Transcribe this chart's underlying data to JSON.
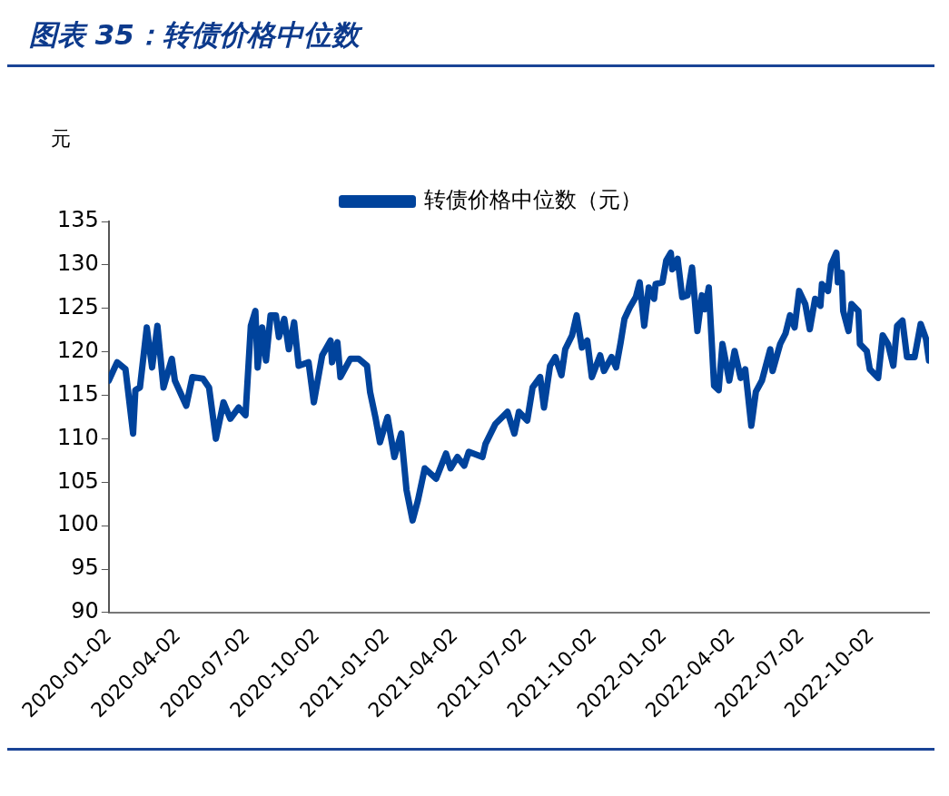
{
  "chart_data": {
    "type": "line",
    "title": "图表 35：转债价格中位数",
    "ylabel": "元",
    "legend": "top",
    "grid": false,
    "marker": "none",
    "line_style": "solid",
    "xlim": [
      "2020-01-02",
      "2022-12-17"
    ],
    "xticks": [
      "2020-01-02",
      "2020-04-02",
      "2020-07-02",
      "2020-10-02",
      "2021-01-02",
      "2021-04-02",
      "2021-07-02",
      "2021-10-02",
      "2022-01-02",
      "2022-04-02",
      "2022-07-02",
      "2022-10-02"
    ],
    "ylim": [
      90,
      135
    ],
    "yticks": [
      90,
      95,
      100,
      105,
      110,
      115,
      120,
      125,
      130,
      135
    ],
    "series": [
      {
        "name": "转债价格中位数（元）",
        "color": "#00439c",
        "x": [
          "2020-01-02",
          "2020-01-13",
          "2020-01-24",
          "2020-02-03",
          "2020-02-06",
          "2020-02-12",
          "2020-02-21",
          "2020-02-28",
          "2020-03-06",
          "2020-03-14",
          "2020-03-25",
          "2020-03-29",
          "2020-04-13",
          "2020-04-21",
          "2020-05-05",
          "2020-05-13",
          "2020-05-22",
          "2020-06-01",
          "2020-06-10",
          "2020-06-21",
          "2020-06-30",
          "2020-07-07",
          "2020-07-13",
          "2020-07-16",
          "2020-07-22",
          "2020-07-27",
          "2020-08-02",
          "2020-08-09",
          "2020-08-13",
          "2020-08-20",
          "2020-08-26",
          "2020-09-02",
          "2020-09-08",
          "2020-09-21",
          "2020-09-28",
          "2020-10-09",
          "2020-10-20",
          "2020-10-22",
          "2020-10-29",
          "2020-11-02",
          "2020-11-15",
          "2020-11-26",
          "2020-12-07",
          "2020-12-11",
          "2020-12-18",
          "2020-12-24",
          "2021-01-03",
          "2021-01-12",
          "2021-01-21",
          "2021-01-28",
          "2021-02-05",
          "2021-02-12",
          "2021-02-21",
          "2021-03-08",
          "2021-03-21",
          "2021-03-27",
          "2021-04-05",
          "2021-04-14",
          "2021-04-20",
          "2021-05-08",
          "2021-05-12",
          "2021-05-25",
          "2021-06-10",
          "2021-06-19",
          "2021-06-25",
          "2021-07-06",
          "2021-07-13",
          "2021-07-23",
          "2021-07-28",
          "2021-08-05",
          "2021-08-12",
          "2021-08-20",
          "2021-08-25",
          "2021-09-03",
          "2021-09-09",
          "2021-09-16",
          "2021-09-23",
          "2021-09-29",
          "2021-10-10",
          "2021-10-15",
          "2021-10-25",
          "2021-10-31",
          "2021-11-06",
          "2021-11-11",
          "2021-11-18",
          "2021-11-26",
          "2021-12-01",
          "2021-12-07",
          "2021-12-13",
          "2021-12-20",
          "2021-12-22",
          "2021-12-31",
          "2022-01-05",
          "2022-01-11",
          "2022-01-13",
          "2022-01-20",
          "2022-01-26",
          "2022-02-02",
          "2022-02-08",
          "2022-02-15",
          "2022-02-21",
          "2022-02-25",
          "2022-03-02",
          "2022-03-09",
          "2022-03-15",
          "2022-03-20",
          "2022-03-29",
          "2022-04-05",
          "2022-04-13",
          "2022-04-19",
          "2022-04-27",
          "2022-05-03",
          "2022-05-11",
          "2022-05-22",
          "2022-05-25",
          "2022-06-04",
          "2022-06-11",
          "2022-06-17",
          "2022-06-23",
          "2022-06-29",
          "2022-07-07",
          "2022-07-13",
          "2022-07-20",
          "2022-07-27",
          "2022-07-29",
          "2022-08-06",
          "2022-08-10",
          "2022-08-17",
          "2022-08-19",
          "2022-08-24",
          "2022-08-26",
          "2022-09-02",
          "2022-09-06",
          "2022-09-15",
          "2022-09-17",
          "2022-09-26",
          "2022-09-30",
          "2022-10-11",
          "2022-10-17",
          "2022-10-24",
          "2022-10-31",
          "2022-11-05",
          "2022-11-12",
          "2022-11-18",
          "2022-11-28",
          "2022-12-06",
          "2022-12-13",
          "2022-12-17"
        ],
        "values": [
          116.7,
          118.8,
          118.0,
          110.6,
          115.6,
          115.9,
          122.8,
          118.2,
          123.0,
          115.9,
          119.2,
          116.7,
          113.8,
          117.1,
          116.9,
          115.9,
          110.0,
          114.2,
          112.3,
          113.6,
          112.7,
          123.0,
          124.7,
          118.2,
          122.8,
          119.0,
          124.2,
          124.2,
          121.7,
          123.8,
          120.3,
          123.4,
          118.4,
          118.8,
          114.2,
          119.6,
          121.3,
          118.8,
          121.1,
          117.1,
          119.2,
          119.2,
          118.4,
          115.4,
          112.5,
          109.6,
          112.5,
          107.9,
          110.6,
          104.1,
          100.6,
          102.9,
          106.6,
          105.4,
          108.3,
          106.6,
          107.9,
          106.9,
          108.5,
          107.9,
          109.4,
          111.7,
          113.1,
          110.6,
          113.1,
          112.1,
          115.9,
          117.1,
          113.6,
          118.4,
          119.4,
          117.3,
          120.3,
          121.9,
          124.2,
          120.5,
          121.3,
          117.1,
          119.6,
          117.8,
          119.4,
          118.2,
          121.1,
          123.8,
          125.1,
          126.3,
          128.0,
          123.0,
          127.4,
          126.1,
          127.8,
          128.0,
          130.5,
          131.4,
          129.5,
          130.7,
          126.3,
          126.5,
          129.7,
          122.4,
          126.5,
          124.9,
          127.4,
          116.1,
          115.6,
          120.9,
          116.7,
          120.1,
          117.0,
          118.0,
          111.5,
          115.4,
          116.7,
          120.3,
          117.8,
          120.9,
          122.1,
          124.2,
          122.8,
          127.0,
          125.5,
          122.6,
          126.1,
          125.3,
          127.8,
          127.0,
          130.0,
          131.4,
          128.0,
          129.1,
          124.7,
          122.4,
          125.5,
          124.7,
          120.9,
          120.1,
          118.0,
          117.0,
          121.9,
          120.9,
          118.4,
          123.0,
          123.6,
          119.4,
          119.4,
          123.2,
          121.5,
          119.0
        ]
      }
    ]
  }
}
